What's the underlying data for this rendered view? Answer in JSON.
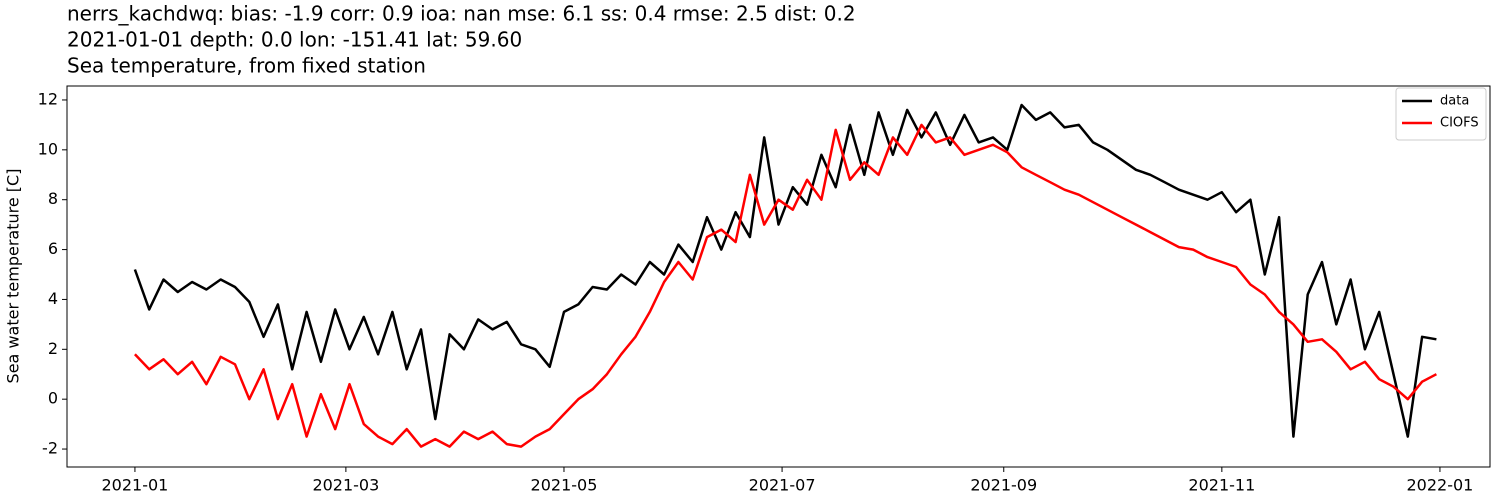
{
  "chart_data": {
    "type": "line",
    "title": "nerrs_kachdwq: bias: -1.9  corr: 0.9  ioa: nan  mse: 6.1  ss: 0.4  rmse: 2.5  dist: 0.2",
    "subtitle": "2021-01-01 depth: 0.0 lon: -151.41 lat: 59.60",
    "subtitle2": "Sea temperature, from fixed station",
    "ylabel": "Sea water temperature [C]",
    "x": [
      0,
      4,
      8,
      12,
      16,
      20,
      24,
      28,
      32,
      36,
      40,
      44,
      48,
      52,
      56,
      60,
      64,
      68,
      72,
      76,
      80,
      84,
      88,
      92,
      96,
      100,
      104,
      108,
      112,
      116,
      120,
      124,
      128,
      132,
      136,
      140,
      144,
      148,
      152,
      156,
      160,
      164,
      168,
      172,
      176,
      180,
      184,
      188,
      192,
      196,
      200,
      204,
      208,
      212,
      216,
      220,
      224,
      228,
      232,
      236,
      240,
      244,
      248,
      252,
      256,
      260,
      264,
      268,
      272,
      276,
      280,
      284,
      288,
      292,
      296,
      300,
      304,
      308,
      312,
      316,
      320,
      324,
      328,
      332,
      336,
      340,
      344,
      348,
      352,
      356,
      360,
      364
    ],
    "series": [
      {
        "name": "data",
        "color": "#000000",
        "values": [
          5.2,
          3.6,
          4.8,
          4.3,
          4.7,
          4.4,
          4.8,
          4.5,
          3.9,
          2.5,
          3.8,
          1.2,
          3.5,
          1.5,
          3.6,
          2.0,
          3.3,
          1.8,
          3.5,
          1.2,
          2.8,
          -0.8,
          2.6,
          2.0,
          3.2,
          2.8,
          3.1,
          2.2,
          2.0,
          1.3,
          3.5,
          3.8,
          4.5,
          4.4,
          5.0,
          4.6,
          5.5,
          5.0,
          6.2,
          5.5,
          7.3,
          6.0,
          7.5,
          6.5,
          10.5,
          7.0,
          8.5,
          7.8,
          9.8,
          8.5,
          11.0,
          9.0,
          11.5,
          9.8,
          11.6,
          10.5,
          11.5,
          10.2,
          11.4,
          10.3,
          10.5,
          10.0,
          11.8,
          11.2,
          11.5,
          10.9,
          11.0,
          10.3,
          10.0,
          9.6,
          9.2,
          9.0,
          8.7,
          8.4,
          8.2,
          8.0,
          8.3,
          7.5,
          8.0,
          5.0,
          7.3,
          -1.5,
          4.2,
          5.5,
          3.0,
          4.8,
          2.0,
          3.5,
          1.0,
          -1.5,
          2.5,
          2.4
        ]
      },
      {
        "name": "CIOFS",
        "color": "#ff0000",
        "values": [
          1.8,
          1.2,
          1.6,
          1.0,
          1.5,
          0.6,
          1.7,
          1.4,
          0.0,
          1.2,
          -0.8,
          0.6,
          -1.5,
          0.2,
          -1.2,
          0.6,
          -1.0,
          -1.5,
          -1.8,
          -1.2,
          -1.9,
          -1.6,
          -1.9,
          -1.3,
          -1.6,
          -1.3,
          -1.8,
          -1.9,
          -1.5,
          -1.2,
          -0.6,
          0.0,
          0.4,
          1.0,
          1.8,
          2.5,
          3.5,
          4.7,
          5.5,
          4.8,
          6.5,
          6.8,
          6.3,
          9.0,
          7.0,
          8.0,
          7.6,
          8.8,
          8.0,
          10.8,
          8.8,
          9.5,
          9.0,
          10.5,
          9.8,
          11.0,
          10.3,
          10.5,
          9.8,
          10.0,
          10.2,
          9.9,
          9.3,
          9.0,
          8.7,
          8.4,
          8.2,
          7.9,
          7.6,
          7.3,
          7.0,
          6.7,
          6.4,
          6.1,
          6.0,
          5.7,
          5.5,
          5.3,
          4.6,
          4.2,
          3.5,
          3.0,
          2.3,
          2.4,
          1.9,
          1.2,
          1.5,
          0.8,
          0.5,
          0.0,
          0.7,
          1.0
        ]
      }
    ],
    "xlim": [
      -19,
      379
    ],
    "xticks": [
      {
        "value": 0,
        "label": "2021-01"
      },
      {
        "value": 59,
        "label": "2021-03"
      },
      {
        "value": 120,
        "label": "2021-05"
      },
      {
        "value": 181,
        "label": "2021-07"
      },
      {
        "value": 243,
        "label": "2021-09"
      },
      {
        "value": 304,
        "label": "2021-11"
      },
      {
        "value": 365,
        "label": "2022-01"
      }
    ],
    "ylim": [
      -2.72,
      12.56
    ],
    "yticks": [
      -2,
      0,
      2,
      4,
      6,
      8,
      10,
      12
    ],
    "legend": "upper right"
  }
}
